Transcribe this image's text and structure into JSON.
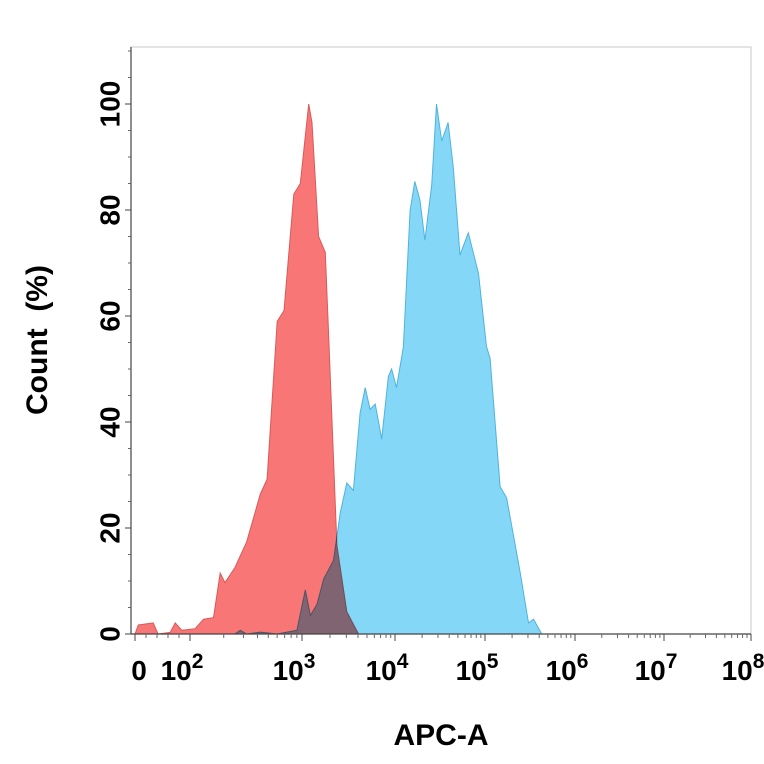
{
  "chart_data": {
    "type": "area",
    "title": "",
    "xlabel": "APC-A",
    "ylabel": "Count  (%)",
    "x_scale": "biexponential (log above 10^2)",
    "xlim": [
      0,
      100000000
    ],
    "ylim": [
      0,
      110
    ],
    "grid": false,
    "legend": "none",
    "x_ticks": [
      {
        "value": 0,
        "base": "0",
        "exp": ""
      },
      {
        "value": 100,
        "base": "10",
        "exp": "2"
      },
      {
        "value": 1000,
        "base": "10",
        "exp": "3"
      },
      {
        "value": 10000,
        "base": "10",
        "exp": "4"
      },
      {
        "value": 100000,
        "base": "10",
        "exp": "5"
      },
      {
        "value": 1000000,
        "base": "10",
        "exp": "6"
      },
      {
        "value": 10000000,
        "base": "10",
        "exp": "7"
      },
      {
        "value": 100000000,
        "base": "10",
        "exp": "8"
      }
    ],
    "y_ticks": [
      "0",
      "20",
      "40",
      "60",
      "80",
      "100"
    ],
    "series": [
      {
        "color": "#f87676",
        "points": [
          [
            0,
            0
          ],
          [
            6,
            1.7
          ],
          [
            33,
            2.1
          ],
          [
            42,
            0
          ],
          [
            64,
            0.3
          ],
          [
            73,
            2.1
          ],
          [
            85,
            0.7
          ],
          [
            111,
            1.0
          ],
          [
            132,
            2.8
          ],
          [
            162,
            3.1
          ],
          [
            186,
            11.5
          ],
          [
            205,
            9.7
          ],
          [
            251,
            12.5
          ],
          [
            321,
            17.4
          ],
          [
            424,
            26.4
          ],
          [
            488,
            29.2
          ],
          [
            600,
            59
          ],
          [
            690,
            61
          ],
          [
            845,
            83
          ],
          [
            966,
            85
          ],
          [
            1180,
            100
          ],
          [
            1280,
            96.5
          ],
          [
            1510,
            75
          ],
          [
            1780,
            72
          ],
          [
            1940,
            55.6
          ],
          [
            2370,
            16.7
          ],
          [
            3030,
            4.2
          ],
          [
            4050,
            0
          ]
        ]
      },
      {
        "color": "#6fd0f6",
        "points": [
          [
            251,
            0
          ],
          [
            281,
            0.7
          ],
          [
            321,
            0
          ],
          [
            424,
            0.35
          ],
          [
            600,
            0
          ],
          [
            900,
            0.7
          ],
          [
            1085,
            8.3
          ],
          [
            1230,
            3.5
          ],
          [
            1450,
            5.6
          ],
          [
            1710,
            10.4
          ],
          [
            2180,
            13.9
          ],
          [
            2580,
            22.9
          ],
          [
            3030,
            28.5
          ],
          [
            3570,
            27.1
          ],
          [
            4210,
            41.7
          ],
          [
            4780,
            46.5
          ],
          [
            5400,
            42.4
          ],
          [
            6130,
            43.4
          ],
          [
            7200,
            36.8
          ],
          [
            8500,
            48.6
          ],
          [
            9200,
            50
          ],
          [
            10400,
            46.5
          ],
          [
            12400,
            54.2
          ],
          [
            14700,
            79.9
          ],
          [
            16600,
            85.4
          ],
          [
            18900,
            81.9
          ],
          [
            21500,
            74.3
          ],
          [
            25600,
            84.7
          ],
          [
            28900,
            100
          ],
          [
            33000,
            93
          ],
          [
            38900,
            96.5
          ],
          [
            44300,
            88.2
          ],
          [
            52700,
            71.5
          ],
          [
            65200,
            75.7
          ],
          [
            84600,
            68
          ],
          [
            104000,
            54.2
          ],
          [
            114000,
            52
          ],
          [
            147000,
            27.8
          ],
          [
            174000,
            25.7
          ],
          [
            245000,
            11.8
          ],
          [
            304000,
            2.1
          ],
          [
            346000,
            2.8
          ],
          [
            428000,
            0
          ]
        ]
      }
    ]
  }
}
